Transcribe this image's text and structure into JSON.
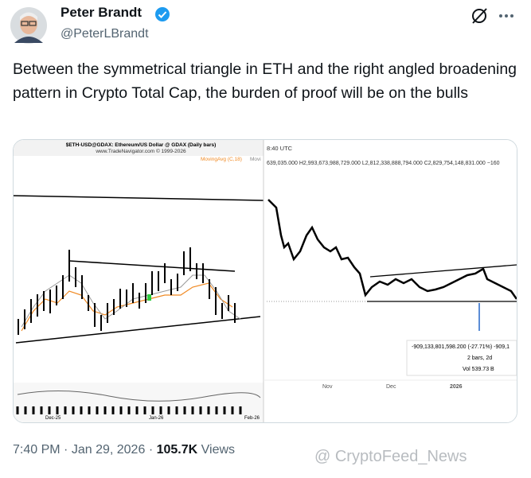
{
  "author": {
    "name": "Peter Brandt",
    "handle": "@PeterLBrandt"
  },
  "text": "Between the symmetrical triangle in ETH and the right angled broadening pattern in Crypto Total Cap, the burden of proof will be on the bulls",
  "media": {
    "left_chart": {
      "title": "$ETH-USD@GDAX: Ethereum/US Dollar @ GDAX (Daily bars)",
      "source": "www.TradeNavigator.com © 1999-2026",
      "indicator": "MovingAvg (C,18)",
      "indicator_cut": "Movi",
      "x_labels": [
        "Dec-25",
        "Jan-26",
        "Feb-26"
      ]
    },
    "right_chart": {
      "time": "8:40 UTC",
      "ohlc": "639,035.000  H2,993,673,988,729.000  L2,812,338,888,794.000  C2,829,754,148,831.000  −160",
      "measure": "-909,133,801,598.200 (-27.71%) -909,1",
      "bars": "2 bars, 2d",
      "volume": "Vol 539.73 B",
      "x_labels": [
        "Nov",
        "Dec",
        "2026"
      ]
    }
  },
  "footer": {
    "time": "7:40 PM",
    "separator": "·",
    "date": "Jan 29, 2026",
    "views_count": "105.7K",
    "views_label": "Views"
  },
  "watermark": "@ CryptoFeed_News"
}
